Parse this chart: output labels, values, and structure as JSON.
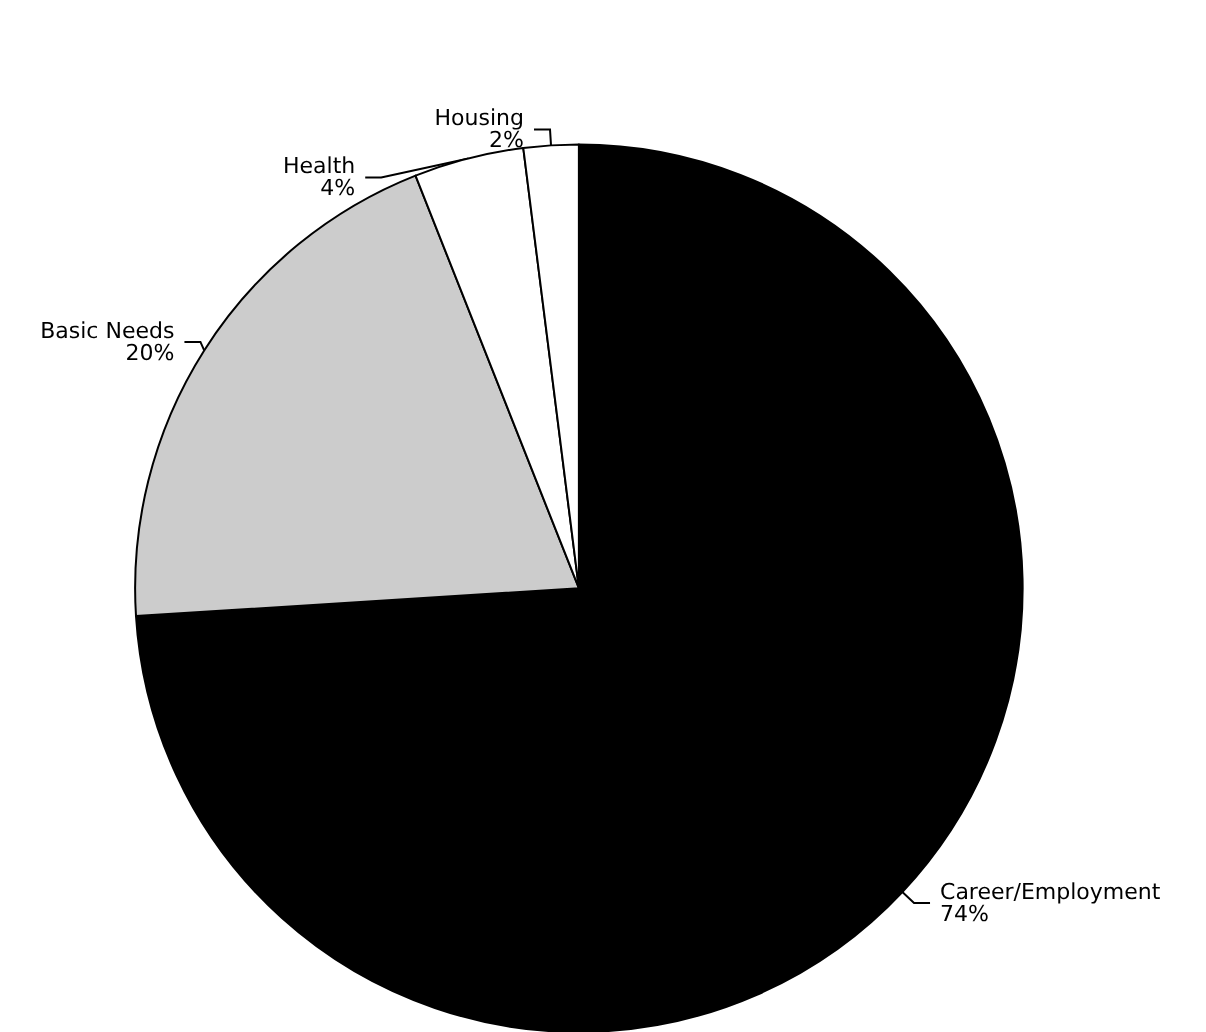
{
  "chart_data": {
    "type": "pie",
    "categories": [
      "Career/Employment",
      "Basic Needs",
      "Health",
      "Housing"
    ],
    "values": [
      74,
      20,
      4,
      2
    ],
    "colors": [
      "#000000",
      "#cccccc",
      "#ffffff",
      "#ffffff"
    ],
    "value_labels": [
      "74%",
      "20%",
      "4%",
      "2%"
    ],
    "legend": false
  }
}
